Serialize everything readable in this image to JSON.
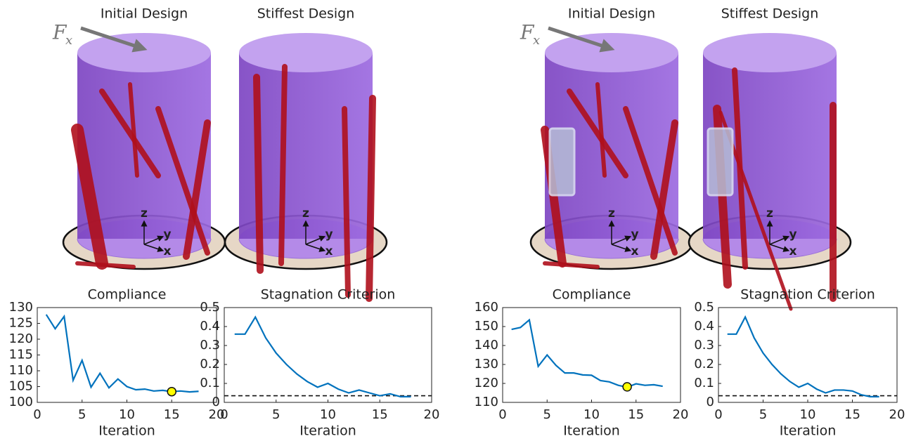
{
  "illustrations": [
    {
      "titles": [
        "Initial Design",
        "Stiffest Design"
      ],
      "force_label": "F",
      "force_subscript": "x",
      "axes": [
        "z",
        "y",
        "x"
      ]
    },
    {
      "titles": [
        "Initial Design",
        "Stiffest Design"
      ],
      "force_label": "F",
      "force_subscript": "x",
      "axes": [
        "z",
        "y",
        "x"
      ]
    }
  ],
  "chart_data": [
    {
      "type": "line",
      "title": "Compliance",
      "xlabel": "Iteration",
      "x": [
        1,
        2,
        3,
        4,
        5,
        6,
        7,
        8,
        9,
        10,
        11,
        12,
        13,
        14,
        15,
        16,
        17,
        18
      ],
      "series": [
        {
          "color": "#0072bd",
          "values": [
            127.8,
            123.3,
            127.2,
            107,
            113.3,
            104.8,
            109.2,
            104.6,
            107.4,
            105,
            104,
            104.2,
            103.6,
            103.8,
            103.4,
            103.6,
            103.3,
            103.5
          ]
        }
      ],
      "highlight": {
        "x": 15,
        "y": 103.4,
        "color": "#ffff00"
      },
      "xlim": [
        0,
        20
      ],
      "xticks": [
        0,
        5,
        10,
        15,
        20
      ],
      "ylim": [
        100,
        130
      ],
      "yticks": [
        100,
        105,
        110,
        115,
        120,
        125,
        130
      ]
    },
    {
      "type": "line",
      "title": "Stagnation Criterion",
      "xlabel": "Iteration",
      "x": [
        1,
        2,
        3,
        4,
        5,
        6,
        7,
        8,
        9,
        10,
        11,
        12,
        13,
        14,
        15,
        16,
        17,
        18
      ],
      "series": [
        {
          "color": "#0072bd",
          "values": [
            0.36,
            0.36,
            0.45,
            0.34,
            0.26,
            0.2,
            0.15,
            0.11,
            0.08,
            0.1,
            0.07,
            0.05,
            0.065,
            0.05,
            0.035,
            0.045,
            0.03,
            0.03
          ]
        }
      ],
      "reference_line": 0.035,
      "xlim": [
        0,
        20
      ],
      "xticks": [
        0,
        5,
        10,
        15,
        20
      ],
      "ylim": [
        0,
        0.5
      ],
      "yticks": [
        0,
        0.1,
        0.2,
        0.3,
        0.4,
        0.5
      ]
    },
    {
      "type": "line",
      "title": "Compliance",
      "xlabel": "Iteration",
      "x": [
        1,
        2,
        3,
        4,
        5,
        6,
        7,
        8,
        9,
        10,
        11,
        12,
        13,
        14,
        15,
        16,
        17,
        18
      ],
      "series": [
        {
          "color": "#0072bd",
          "values": [
            148.5,
            149.5,
            153.5,
            129,
            135,
            129.5,
            125.5,
            125.5,
            124.5,
            124.3,
            121.5,
            120.8,
            119,
            118,
            119.8,
            119,
            119.3,
            118.5
          ]
        }
      ],
      "highlight": {
        "x": 14,
        "y": 118.2,
        "color": "#ffff00"
      },
      "xlim": [
        0,
        20
      ],
      "xticks": [
        0,
        5,
        10,
        15,
        20
      ],
      "ylim": [
        110,
        160
      ],
      "yticks": [
        110,
        120,
        130,
        140,
        150,
        160
      ]
    },
    {
      "type": "line",
      "title": "Stagnation Criterion",
      "xlabel": "Iteration",
      "x": [
        1,
        2,
        3,
        4,
        5,
        6,
        7,
        8,
        9,
        10,
        11,
        12,
        13,
        14,
        15,
        16,
        17,
        18
      ],
      "series": [
        {
          "color": "#0072bd",
          "values": [
            0.36,
            0.36,
            0.45,
            0.34,
            0.26,
            0.2,
            0.15,
            0.11,
            0.08,
            0.1,
            0.07,
            0.05,
            0.065,
            0.065,
            0.06,
            0.04,
            0.03,
            0.03
          ]
        }
      ],
      "reference_line": 0.035,
      "xlim": [
        0,
        20
      ],
      "xticks": [
        0,
        5,
        10,
        15,
        20
      ],
      "ylim": [
        0,
        0.5
      ],
      "yticks": [
        0,
        0.1,
        0.2,
        0.3,
        0.4,
        0.5
      ]
    }
  ]
}
